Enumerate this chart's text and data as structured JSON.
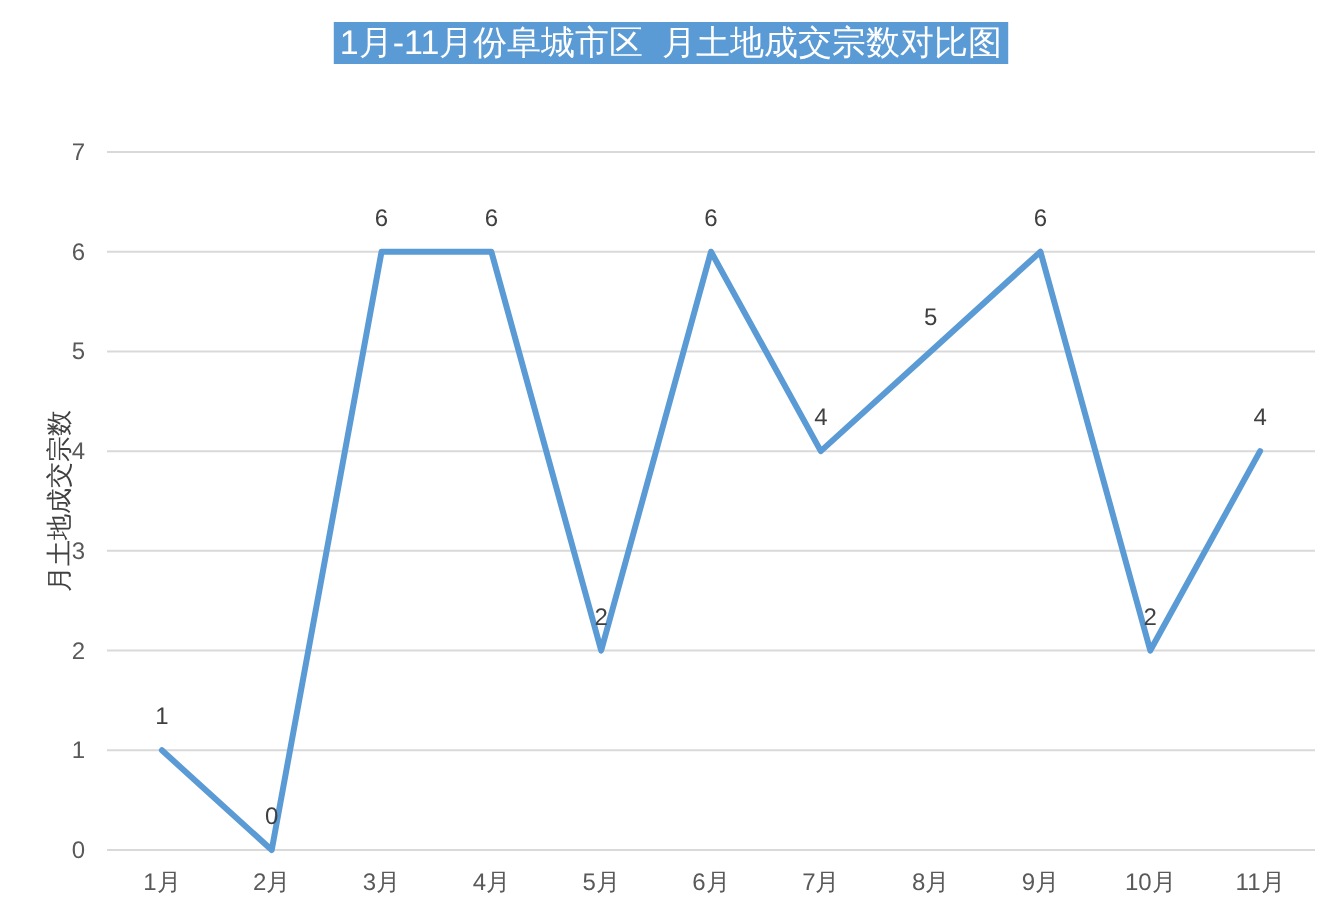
{
  "chart_data": {
    "type": "line",
    "title": "1月-11月份阜城市区  月土地成交宗数对比图",
    "ylabel": "月土地成交宗数",
    "categories": [
      "1月",
      "2月",
      "3月",
      "4月",
      "5月",
      "6月",
      "7月",
      "8月",
      "9月",
      "10月",
      "11月"
    ],
    "series": [
      {
        "color": "#5b9bd5",
        "values": [
          1,
          0,
          6,
          6,
          2,
          6,
          4,
          5,
          6,
          2,
          4
        ]
      }
    ],
    "ylim": [
      0,
      7
    ],
    "yticks": [
      0,
      1,
      2,
      3,
      4,
      5,
      6,
      7
    ],
    "grid": "y",
    "data_labels": true
  }
}
